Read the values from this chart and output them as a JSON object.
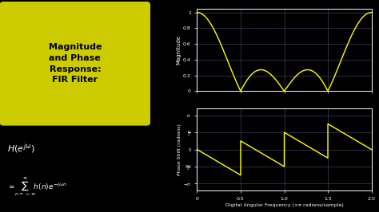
{
  "bg_color": "#000000",
  "plot_bg_color": "#000000",
  "line_color": "#ffff00",
  "grid_color": "#404060",
  "text_color": "#ffffff",
  "axis_color": "#ffffff",
  "title_box_color": "#cccc00",
  "title_text": "Magnitude\nand Phase\nResponse:\nFIR Filter",
  "xlabel": "Digital Angular Frequency (×π radians/sample)",
  "ylabel_mag": "Magnitude",
  "ylabel_phase": "Phase Shift (radians)",
  "mag_yticks": [
    0,
    0.2,
    0.4,
    0.6,
    0.8,
    1.0
  ],
  "xticks": [
    0,
    0.5,
    1.0,
    1.5,
    2.0
  ],
  "xlim": [
    0,
    2
  ],
  "mag_ylim": [
    0,
    1.05
  ],
  "phase_ylim": [
    -3.8,
    3.8
  ]
}
